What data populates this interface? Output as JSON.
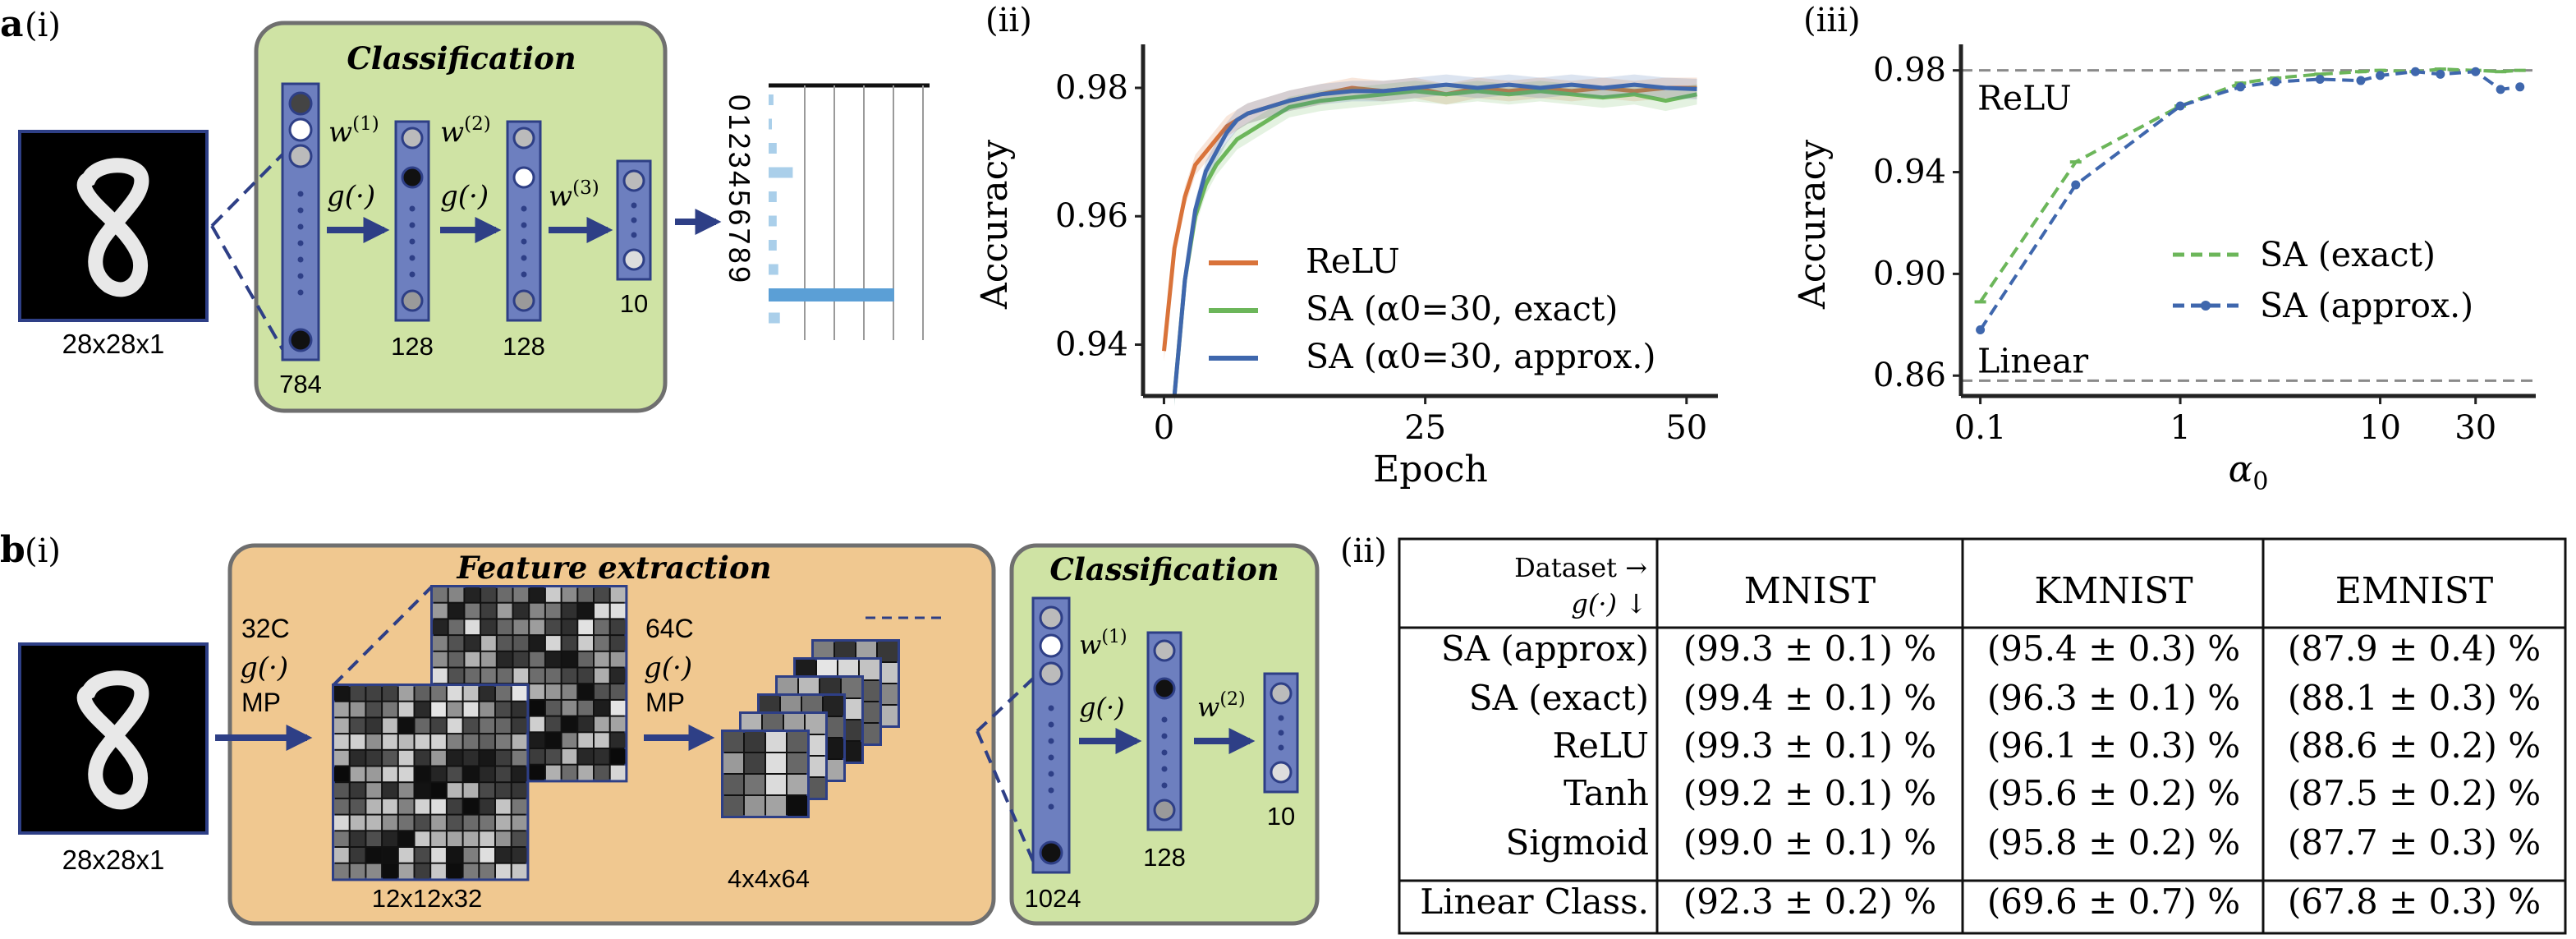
{
  "panel_a": {
    "label": "a",
    "sub_i": "(i)",
    "sub_ii": "(ii)",
    "sub_iii": "(iii)",
    "input_caption": "28x28x1",
    "box_title": "Classification",
    "layer_sizes": [
      "784",
      "128",
      "128",
      "10"
    ],
    "weights": [
      "w",
      "w",
      "w"
    ],
    "weight_sup": [
      "(1)",
      "(2)",
      "(3)"
    ],
    "activation": "g(·)",
    "digits": "0123456789"
  },
  "panel_b": {
    "label": "b",
    "sub_i": "(i)",
    "sub_ii": "(ii)",
    "input_caption": "28x28x1",
    "feature_title": "Feature extraction",
    "class_title": "Classification",
    "conv1": [
      "32C",
      "g(·)",
      "MP"
    ],
    "conv2": [
      "64C",
      "g(·)",
      "MP"
    ],
    "map1_caption": "12x12x32",
    "map2_caption": "4x4x64",
    "layer_sizes": [
      "1024",
      "128",
      "10"
    ],
    "weights": [
      "w",
      "w"
    ],
    "weight_sup": [
      "(1)",
      "(2)"
    ],
    "activation": "g(·)"
  },
  "table": {
    "corner_top": "Dataset →",
    "corner_bottom": "g(·)  ↓",
    "columns": [
      "MNIST",
      "KMNIST",
      "EMNIST"
    ],
    "rows": [
      {
        "name": "SA (approx)",
        "values": [
          "(99.3 ± 0.1) %",
          "(95.4 ± 0.3) %",
          "(87.9 ± 0.4) %"
        ]
      },
      {
        "name": "SA (exact)",
        "values": [
          "(99.4 ± 0.1) %",
          "(96.3 ± 0.1) %",
          "(88.1 ± 0.3) %"
        ]
      },
      {
        "name": "ReLU",
        "values": [
          "(99.3 ± 0.1) %",
          "(96.1 ± 0.3) %",
          "(88.6 ± 0.2) %"
        ]
      },
      {
        "name": "Tanh",
        "values": [
          "(99.2 ± 0.1) %",
          "(95.6 ± 0.2) %",
          "(87.5 ± 0.2) %"
        ]
      },
      {
        "name": "Sigmoid",
        "values": [
          "(99.0 ± 0.1) %",
          "(95.8 ± 0.2) %",
          "(87.7 ± 0.3) %"
        ]
      },
      {
        "name": "Linear Class.",
        "values": [
          "(92.3 ± 0.2) %",
          "(69.6 ± 0.7) %",
          "(67.8 ± 0.3) %"
        ]
      }
    ]
  },
  "chart_data": [
    {
      "type": "bar",
      "orientation": "horizontal",
      "categories": [
        "0",
        "1",
        "2",
        "3",
        "4",
        "5",
        "6",
        "7",
        "8",
        "9"
      ],
      "values": [
        0.03,
        0.02,
        0.05,
        0.15,
        0.05,
        0.05,
        0.05,
        0.06,
        0.78,
        0.07
      ],
      "highlight_index": 8,
      "colors": {
        "bar": "#aacfea",
        "highlight": "#5b9fd6"
      }
    },
    {
      "type": "line",
      "xlabel": "Epoch",
      "ylabel": "Accuracy",
      "xlim": [
        -2,
        53
      ],
      "ylim": [
        0.932,
        0.9855
      ],
      "xticks": [
        0,
        25,
        50
      ],
      "yticks": [
        0.94,
        0.96,
        0.98
      ],
      "ytick_labels": [
        "0.94",
        "0.96",
        "0.98"
      ],
      "legend_position": "lower-right",
      "series": [
        {
          "name": "ReLU",
          "color": "#d9733a",
          "x": [
            0,
            1,
            2,
            3,
            4,
            5,
            6,
            7,
            8,
            10,
            12,
            15,
            18,
            21,
            24,
            27,
            30,
            33,
            36,
            39,
            42,
            45,
            48,
            51
          ],
          "y": [
            0.939,
            0.955,
            0.963,
            0.968,
            0.97,
            0.972,
            0.974,
            0.975,
            0.976,
            0.977,
            0.978,
            0.979,
            0.98,
            0.9795,
            0.98,
            0.979,
            0.98,
            0.9795,
            0.98,
            0.9795,
            0.98,
            0.9795,
            0.98,
            0.98
          ]
        },
        {
          "name": "SA (α0=30, exact)",
          "color": "#6cb65a",
          "x": [
            1,
            2,
            3,
            4,
            5,
            6,
            7,
            8,
            10,
            12,
            15,
            18,
            21,
            24,
            27,
            30,
            33,
            36,
            39,
            42,
            45,
            48,
            51
          ],
          "y": [
            0.932,
            0.95,
            0.96,
            0.965,
            0.968,
            0.97,
            0.972,
            0.973,
            0.975,
            0.977,
            0.978,
            0.9785,
            0.979,
            0.9795,
            0.979,
            0.9795,
            0.979,
            0.9795,
            0.979,
            0.9785,
            0.979,
            0.978,
            0.979
          ]
        },
        {
          "name": "SA (α0=30, approx.)",
          "color": "#3f67ad",
          "x": [
            1,
            2,
            3,
            4,
            5,
            6,
            7,
            8,
            10,
            12,
            15,
            18,
            21,
            24,
            27,
            30,
            33,
            36,
            39,
            42,
            45,
            48,
            51
          ],
          "y": [
            0.932,
            0.95,
            0.961,
            0.967,
            0.97,
            0.973,
            0.975,
            0.976,
            0.977,
            0.978,
            0.979,
            0.9795,
            0.9795,
            0.98,
            0.9805,
            0.98,
            0.9805,
            0.98,
            0.9805,
            0.98,
            0.9805,
            0.98,
            0.9798
          ]
        }
      ]
    },
    {
      "type": "line",
      "xlabel": "α0",
      "ylabel": "Accuracy",
      "xscale": "log",
      "xlim": [
        0.08,
        60
      ],
      "ylim": [
        0.852,
        0.987
      ],
      "xticks": [
        0.1,
        1,
        10,
        30
      ],
      "xtick_labels": [
        "0.1",
        "1",
        "10",
        "30"
      ],
      "yticks": [
        0.86,
        0.9,
        0.94,
        0.98
      ],
      "ytick_labels": [
        "0.86",
        "0.90",
        "0.94",
        "0.98"
      ],
      "legend_position": "lower-right",
      "reference_lines": [
        {
          "name": "ReLU",
          "y": 0.98,
          "color": "#8a8a8a"
        },
        {
          "name": "Linear",
          "y": 0.858,
          "color": "#8a8a8a"
        }
      ],
      "series": [
        {
          "name": "SA (exact)",
          "color": "#6cb65a",
          "x": [
            0.1,
            0.3,
            1,
            2,
            3,
            5,
            8,
            10,
            15,
            20,
            30,
            40,
            50
          ],
          "y": [
            0.889,
            0.944,
            0.966,
            0.975,
            0.977,
            0.9785,
            0.9795,
            0.98,
            0.9795,
            0.9805,
            0.98,
            0.9795,
            0.98
          ]
        },
        {
          "name": "SA (approx.)",
          "color": "#3f67ad",
          "x": [
            0.1,
            0.3,
            1,
            2,
            3,
            5,
            8,
            10,
            15,
            20,
            30,
            40,
            50
          ],
          "y": [
            0.878,
            0.935,
            0.966,
            0.9735,
            0.9755,
            0.9765,
            0.976,
            0.978,
            0.9795,
            0.9785,
            0.9795,
            0.9725,
            0.9735
          ]
        }
      ]
    }
  ]
}
